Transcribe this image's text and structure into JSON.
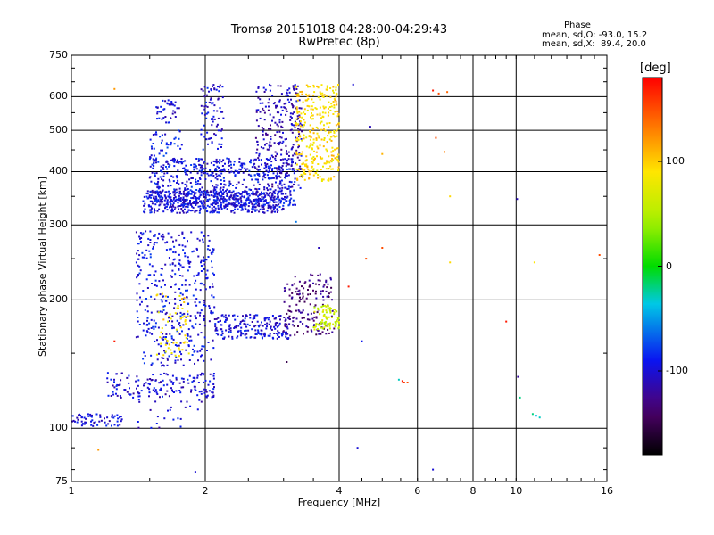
{
  "chart_data": {
    "type": "scatter",
    "title": "Tromsø 20151018 04:28:00-04:29:43",
    "subtitle": "RwPretec (8p)",
    "xlabel": "Frequency [MHz]",
    "ylabel": "Stationary phase Virtual Height [km]",
    "x_scale": "log",
    "y_scale": "log",
    "xlim": [
      1,
      16
    ],
    "ylim": [
      75,
      750
    ],
    "x_ticks": [
      "1",
      "2",
      "4",
      "6",
      "8",
      "10",
      "16"
    ],
    "y_ticks": [
      "75",
      "100",
      "200",
      "300",
      "400",
      "500",
      "600",
      "750"
    ],
    "grid": true,
    "phase_box": {
      "title": "Phase",
      "line1": "mean, sd,O: -93.0, 15.2",
      "line2": "mean, sd,X:  89.4, 20.0"
    },
    "colorbar": {
      "label": "[deg]",
      "range": [
        -180,
        180
      ],
      "ticks": [
        "100",
        "0",
        "-100"
      ],
      "tick_values": [
        100,
        0,
        -100
      ],
      "colormap": "rainbow"
    },
    "clusters": [
      {
        "name": "F-trace lower edge",
        "f": [
          1.45,
          3.0
        ],
        "h": [
          320,
          360
        ],
        "phase": -100,
        "n": 500
      },
      {
        "name": "F-trace body",
        "f": [
          1.5,
          3.2
        ],
        "h": [
          330,
          430
        ],
        "phase": -95,
        "n": 650
      },
      {
        "name": "F-trace high",
        "f": [
          2.6,
          3.3
        ],
        "h": [
          360,
          640
        ],
        "phase": -110,
        "n": 260
      },
      {
        "name": "F-trace X mode",
        "f": [
          3.2,
          4.0
        ],
        "h": [
          380,
          640
        ],
        "phase": 95,
        "n": 320
      },
      {
        "name": "spread above 2 MHz",
        "f": [
          1.95,
          2.2
        ],
        "h": [
          450,
          640
        ],
        "phase": -100,
        "n": 80
      },
      {
        "name": "patch 1.6 MHz",
        "f": [
          1.55,
          1.75
        ],
        "h": [
          520,
          590
        ],
        "phase": -100,
        "n": 40
      },
      {
        "name": "spread 1.6 MHz",
        "f": [
          1.5,
          1.8
        ],
        "h": [
          420,
          500
        ],
        "phase": -90,
        "n": 50
      },
      {
        "name": "E-region spread",
        "f": [
          1.4,
          2.1
        ],
        "h": [
          140,
          290
        ],
        "phase": -95,
        "n": 420
      },
      {
        "name": "E-region yellow",
        "f": [
          1.55,
          1.85
        ],
        "h": [
          145,
          210
        ],
        "phase": 90,
        "n": 60
      },
      {
        "name": "mid trace",
        "f": [
          2.1,
          3.1
        ],
        "h": [
          162,
          185
        ],
        "phase": -100,
        "n": 200
      },
      {
        "name": "upper trace",
        "f": [
          3.0,
          3.9
        ],
        "h": [
          165,
          230
        ],
        "phase": -130,
        "n": 160
      },
      {
        "name": "yellow-green band",
        "f": [
          3.5,
          4.0
        ],
        "h": [
          170,
          195
        ],
        "phase": 60,
        "n": 80
      },
      {
        "name": "low trace",
        "f": [
          1.2,
          2.1
        ],
        "h": [
          118,
          135
        ],
        "phase": -100,
        "n": 160
      },
      {
        "name": "lowest trace",
        "f": [
          1.0,
          1.3
        ],
        "h": [
          101,
          108
        ],
        "phase": -100,
        "n": 60
      },
      {
        "name": "sparse low",
        "f": [
          1.4,
          2.0
        ],
        "h": [
          100,
          118
        ],
        "phase": -100,
        "n": 25
      }
    ],
    "outliers": [
      {
        "f": 6.7,
        "h": 610,
        "phase": 150
      },
      {
        "f": 7.0,
        "h": 615,
        "phase": 140
      },
      {
        "f": 6.5,
        "h": 620,
        "phase": 170
      },
      {
        "f": 6.6,
        "h": 480,
        "phase": 150
      },
      {
        "f": 6.9,
        "h": 445,
        "phase": 130
      },
      {
        "f": 7.1,
        "h": 350,
        "phase": 95
      },
      {
        "f": 7.1,
        "h": 245,
        "phase": 95
      },
      {
        "f": 10.05,
        "h": 345,
        "phase": -110
      },
      {
        "f": 11.0,
        "h": 245,
        "phase": 90
      },
      {
        "f": 15.4,
        "h": 255,
        "phase": 150
      },
      {
        "f": 9.5,
        "h": 178,
        "phase": 170
      },
      {
        "f": 10.1,
        "h": 132,
        "phase": -120
      },
      {
        "f": 10.2,
        "h": 118,
        "phase": -20
      },
      {
        "f": 10.9,
        "h": 108,
        "phase": -20
      },
      {
        "f": 11.1,
        "h": 107,
        "phase": -40
      },
      {
        "f": 11.3,
        "h": 106,
        "phase": -30
      },
      {
        "f": 5.55,
        "h": 129,
        "phase": 170
      },
      {
        "f": 5.6,
        "h": 128,
        "phase": 160
      },
      {
        "f": 5.7,
        "h": 128,
        "phase": 150
      },
      {
        "f": 5.45,
        "h": 130,
        "phase": -30
      },
      {
        "f": 6.5,
        "h": 80,
        "phase": -100
      },
      {
        "f": 4.4,
        "h": 90,
        "phase": -100
      },
      {
        "f": 4.6,
        "h": 250,
        "phase": 150
      },
      {
        "f": 5.0,
        "h": 265,
        "phase": 150
      },
      {
        "f": 4.2,
        "h": 215,
        "phase": 170
      },
      {
        "f": 4.3,
        "h": 640,
        "phase": -100
      },
      {
        "f": 4.7,
        "h": 510,
        "phase": -110
      },
      {
        "f": 5.0,
        "h": 440,
        "phase": 110
      },
      {
        "f": 4.5,
        "h": 160,
        "phase": -90
      },
      {
        "f": 1.25,
        "h": 625,
        "phase": 120
      },
      {
        "f": 1.25,
        "h": 160,
        "phase": 170
      },
      {
        "f": 1.15,
        "h": 89,
        "phase": 120
      },
      {
        "f": 1.9,
        "h": 79,
        "phase": -100
      },
      {
        "f": 3.05,
        "h": 143,
        "phase": -150
      },
      {
        "f": 3.2,
        "h": 305,
        "phase": -60
      },
      {
        "f": 3.6,
        "h": 265,
        "phase": -110
      }
    ]
  }
}
